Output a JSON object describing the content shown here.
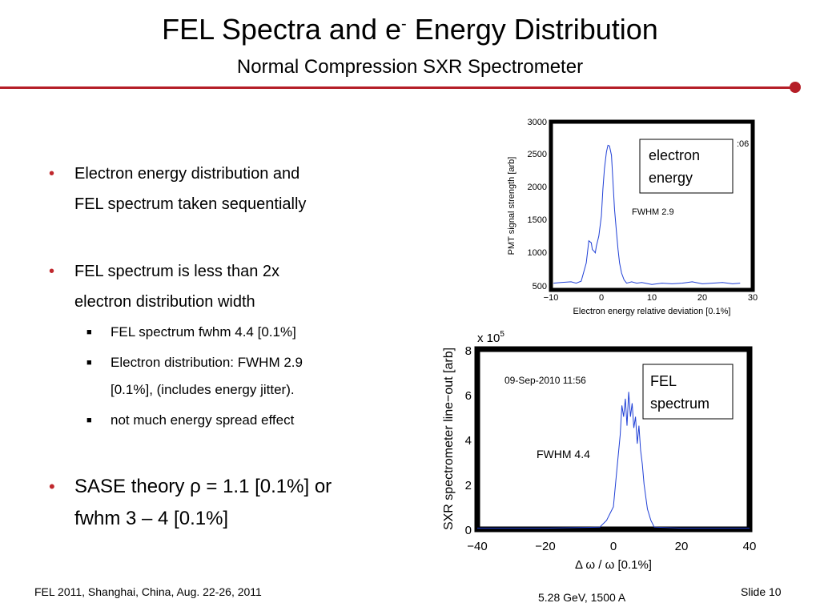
{
  "slide": {
    "title_main": "FEL Spectra and e",
    "title_sup": "-",
    "title_rest": " Energy Distribution",
    "subtitle": "Normal Compression SXR Spectrometer",
    "accent_color": "#b51e27",
    "bullets": [
      {
        "lines": [
          "Electron energy distribution  and",
          "FEL spectrum taken sequentially"
        ]
      },
      {
        "lines": [
          "FEL spectrum is less than 2x",
          "electron distribution width"
        ]
      },
      {
        "sub": [
          {
            "lines": [
              "FEL spectrum fwhm 4.4 [0.1%]"
            ]
          },
          {
            "lines": [
              "Electron distribution: FWHM 2.9",
              "[0.1%], (includes energy jitter)."
            ]
          },
          {
            "lines": [
              "not much energy spread effect"
            ]
          }
        ]
      },
      {
        "lines": [
          "SASE theory ρ = 1.1 [0.1%]  or",
          "fwhm 3 – 4 [0.1%]"
        ]
      }
    ],
    "footer_left": "FEL 2011, Shanghai, China, Aug. 22-26, 2011",
    "footer_center": "5.28 GeV, 1500 A",
    "footer_right": "Slide 10"
  },
  "chart_data": [
    {
      "type": "line",
      "title": "",
      "xlabel": "Electron energy relative deviation [0.1%]",
      "ylabel": "PMT signal strength [arb]",
      "xlim": [
        -10,
        30
      ],
      "ylim": [
        500,
        3000
      ],
      "xticks": [
        "−10",
        "0",
        "10",
        "20",
        "30"
      ],
      "yticks": [
        "500",
        "1000",
        "1500",
        "2000",
        "2500",
        "3000"
      ],
      "legend_box": [
        "electron",
        "energy"
      ],
      "annotation": "FWHM 2.9",
      "partial_date_text": ":06",
      "series": [
        {
          "color": "#1f3fd6",
          "x": [
            -9.5,
            -8,
            -6,
            -5,
            -4,
            -3,
            -2.5,
            -2,
            -1.8,
            -1.5,
            -1.2,
            -1,
            -0.5,
            0,
            0.3,
            0.6,
            1,
            1.3,
            1.6,
            2,
            2.3,
            2.6,
            3,
            3.3,
            3.6,
            4,
            4.5,
            5,
            6,
            7,
            8,
            10,
            12,
            14,
            16,
            18,
            20,
            22,
            24,
            26,
            27.5
          ],
          "y": [
            600,
            610,
            620,
            600,
            630,
            900,
            1230,
            1200,
            1100,
            1080,
            1050,
            1150,
            1300,
            1600,
            2000,
            2300,
            2550,
            2650,
            2640,
            2500,
            2100,
            1700,
            1350,
            1100,
            900,
            750,
            650,
            600,
            620,
            600,
            610,
            580,
            600,
            590,
            600,
            620,
            590,
            600,
            610,
            590,
            600
          ]
        }
      ]
    },
    {
      "type": "line",
      "title": "",
      "xlabel": "Δ ω / ω [0.1%]",
      "ylabel": "SXR spectrometer line−out [arb]",
      "xlim": [
        -40,
        40
      ],
      "ylim": [
        0,
        8
      ],
      "xticks": [
        "−40",
        "−20",
        "0",
        "20",
        "40"
      ],
      "yticks": [
        "0",
        "2",
        "4",
        "6",
        "8"
      ],
      "y_multiplier": "x 10",
      "y_multiplier_exp": "5",
      "legend_box": [
        "FEL",
        "spectrum"
      ],
      "annotation": "FWHM 4.4",
      "date_text": "09-Sep-2010 11:56",
      "series": [
        {
          "color": "#1f3fd6",
          "x": [
            -40,
            -20,
            -4,
            -2,
            0,
            1,
            2,
            2.5,
            3,
            3.5,
            4,
            4.5,
            5,
            5.5,
            6,
            6.5,
            7,
            7.5,
            8,
            8.5,
            9,
            10,
            11,
            12,
            20,
            40
          ],
          "y": [
            0.05,
            0.05,
            0.1,
            0.4,
            1.0,
            2.6,
            4.2,
            5.5,
            5.0,
            5.8,
            4.6,
            6.1,
            5.0,
            5.6,
            4.5,
            5.0,
            3.8,
            4.6,
            3.5,
            2.9,
            2.0,
            0.9,
            0.4,
            0.1,
            0.05,
            0.05
          ]
        }
      ]
    }
  ]
}
